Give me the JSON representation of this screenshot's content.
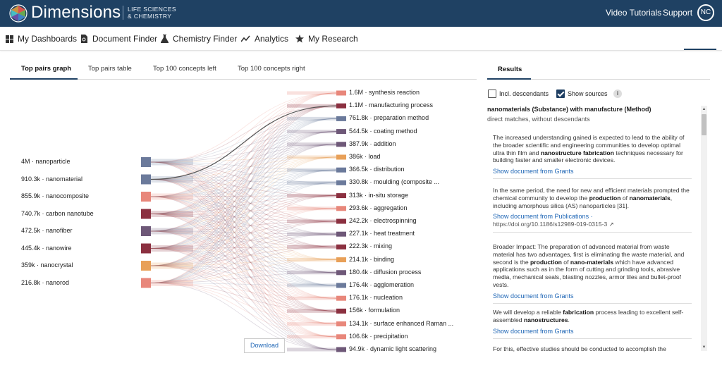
{
  "brand": {
    "name": "Dimensions",
    "sub_line1": "LIFE SCIENCES",
    "sub_line2": "& CHEMISTRY"
  },
  "topbar": {
    "video_tutorials": "Video Tutorials",
    "support": "Support",
    "avatar": "NC"
  },
  "nav": [
    {
      "label": "My Dashboards",
      "icon": "dashboard-icon"
    },
    {
      "label": "Document Finder",
      "icon": "document-search-icon"
    },
    {
      "label": "Chemistry Finder",
      "icon": "flask-icon"
    },
    {
      "label": "Analytics",
      "icon": "line-chart-icon"
    },
    {
      "label": "My Research",
      "icon": "star-icon"
    }
  ],
  "tabs": [
    "Top pairs graph",
    "Top pairs table",
    "Top 100 concepts left",
    "Top 100 concepts right"
  ],
  "results": {
    "tab": "Results",
    "incl_descendants": "Incl. descendants",
    "show_sources": "Show sources",
    "info": "i",
    "title": "nanomaterials (Substance) with manufacture (Method)",
    "subtitle": "direct matches, without descendants",
    "cards": [
      {
        "html": "The increased understanding gained is expected to lead to the ability of the broader scientific and engineering communities to develop optimal ultra thin film and <b>nanostructure fabrication</b> techniques necessary for building faster and smaller electronic devices.",
        "link": "Show document from Grants",
        "doi": ""
      },
      {
        "html": "In the same period, the need for new and efficient materials prompted the chemical community to develop the <b>production</b> of <b>nanomaterials</b>, including amorphous silica (AS) nanoparticles [31].",
        "link": "Show document from Publications ·",
        "doi": "https://doi.org/10.1186/s12989-019-0315-3 ↗"
      },
      {
        "html": "Broader Impact: The preparation of advanced material from waste material has two advantages, first is eliminating the waste material, and second is the <b>production</b> of <b>nano-materials</b> which have advanced applications such as in the form of cutting and grinding tools, abrasive media, mechanical seals, blasting nozzles, armor tiles and bullet-proof vests.",
        "link": "Show document from Grants",
        "doi": ""
      },
      {
        "html": "We will develop a reliable <b>fabrication</b> process leading to excellent self-assembled <b>nanostructures</b>.",
        "link": "Show document from Grants",
        "doi": ""
      },
      {
        "html": "For this, effective studies should be conducted to accomplish the",
        "link": "",
        "doi": ""
      }
    ]
  },
  "graph": {
    "left": [
      {
        "label": "4M · nanoparticle",
        "color": "#6b7a9b"
      },
      {
        "label": "910.3k · nanomaterial",
        "color": "#6b7a9b"
      },
      {
        "label": "855.9k · nanocomposite",
        "color": "#e8877b"
      },
      {
        "label": "740.7k · carbon nanotube",
        "color": "#8b3040"
      },
      {
        "label": "472.5k · nanofiber",
        "color": "#6e5878"
      },
      {
        "label": "445.4k · nanowire",
        "color": "#8b3040"
      },
      {
        "label": "359k · nanocrystal",
        "color": "#e8a058"
      },
      {
        "label": "216.8k · nanorod",
        "color": "#e8877b"
      }
    ],
    "right": [
      {
        "label": "1.6M · synthesis reaction",
        "color": "#e8877b"
      },
      {
        "label": "1.1M · manufacturing process",
        "color": "#8b3040"
      },
      {
        "label": "761.8k · preparation method",
        "color": "#6b7a9b"
      },
      {
        "label": "544.5k · coating method",
        "color": "#6e5878"
      },
      {
        "label": "387.9k · addition",
        "color": "#6e5878"
      },
      {
        "label": "386k · load",
        "color": "#e8a058"
      },
      {
        "label": "366.5k · distribution",
        "color": "#6b7a9b"
      },
      {
        "label": "330.8k · moulding (composite ...",
        "color": "#6b7a9b"
      },
      {
        "label": "313k · in-situ storage",
        "color": "#8b3040"
      },
      {
        "label": "293.6k · aggregation",
        "color": "#e8877b"
      },
      {
        "label": "242.2k · electrospinning",
        "color": "#8b3040"
      },
      {
        "label": "227.1k · heat treatment",
        "color": "#6e5878"
      },
      {
        "label": "222.3k · mixing",
        "color": "#8b3040"
      },
      {
        "label": "214.1k · binding",
        "color": "#e8a058"
      },
      {
        "label": "180.4k · diffusion process",
        "color": "#6e5878"
      },
      {
        "label": "176.4k · agglomeration",
        "color": "#6b7a9b"
      },
      {
        "label": "176.1k · nucleation",
        "color": "#e8877b"
      },
      {
        "label": "156k · formulation",
        "color": "#8b3040"
      },
      {
        "label": "134.1k · surface enhanced Raman ...",
        "color": "#e8877b"
      },
      {
        "label": "106.6k · precipitation",
        "color": "#e8877b"
      },
      {
        "label": "94.9k · dynamic light scattering",
        "color": "#6e5878"
      }
    ],
    "highlight": {
      "from": 1,
      "to": 1
    },
    "download": "Download"
  }
}
